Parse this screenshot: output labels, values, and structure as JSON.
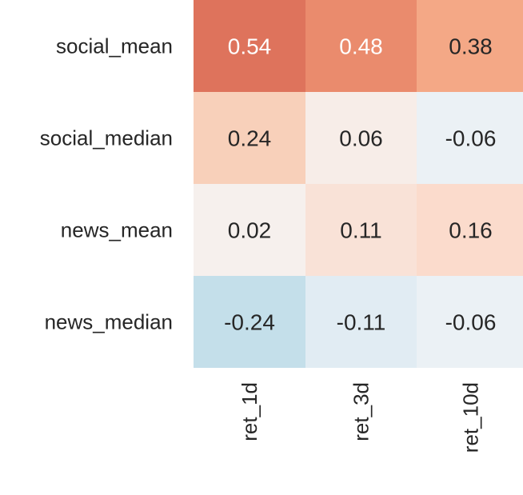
{
  "chart_data": {
    "type": "heatmap",
    "rows": [
      "social_mean",
      "social_median",
      "news_mean",
      "news_median"
    ],
    "columns": [
      "ret_1d",
      "ret_3d",
      "ret_10d"
    ],
    "values": [
      [
        0.54,
        0.48,
        0.38
      ],
      [
        0.24,
        0.06,
        -0.06
      ],
      [
        0.02,
        0.11,
        0.16
      ],
      [
        -0.24,
        -0.11,
        -0.06
      ]
    ],
    "labels": [
      [
        "0.54",
        "0.48",
        "0.38"
      ],
      [
        "0.24",
        "0.06",
        "-0.06"
      ],
      [
        "0.02",
        "0.11",
        "0.16"
      ],
      [
        "-0.24",
        "-0.11",
        "-0.06"
      ]
    ],
    "colorbar": false,
    "grid": false
  },
  "colors": {
    "cells": [
      [
        "#de735c",
        "#ea8b6d",
        "#f4a886"
      ],
      [
        "#f8d0ba",
        "#f7ede8",
        "#ebf1f5"
      ],
      [
        "#f6f0ed",
        "#f9e2d7",
        "#fbdbcc"
      ],
      [
        "#c4dfea",
        "#e1ecf3",
        "#ebf1f5"
      ]
    ],
    "dark_text": "#262626",
    "light_text": "#ffffff",
    "tick_text": "#262626"
  }
}
